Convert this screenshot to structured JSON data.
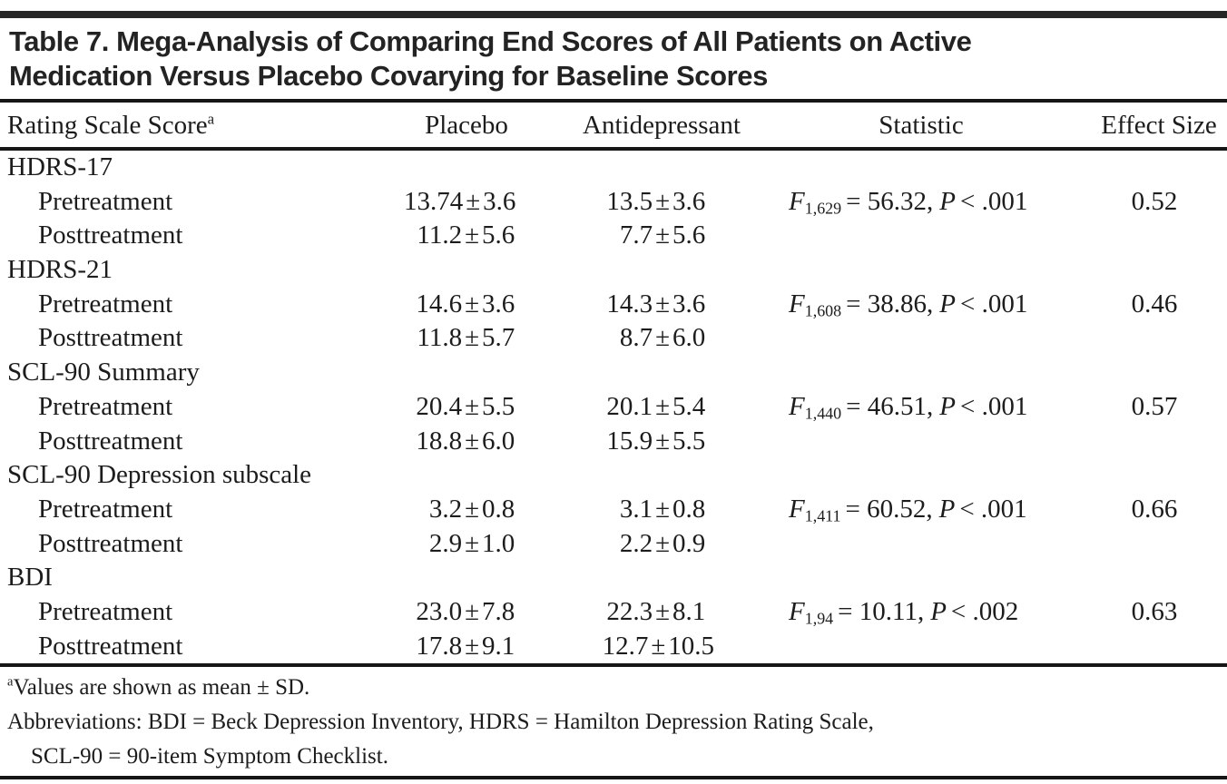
{
  "title": {
    "line1": "Table 7. Mega-Analysis of Comparing End Scores of All Patients on Active",
    "line2": "Medication Versus Placebo Covarying for Baseline Scores"
  },
  "header": {
    "col1": "Rating Scale Score",
    "col1_note": "a",
    "col2": "Placebo",
    "col3": "Antidepressant",
    "col4": "Statistic",
    "col5": "Effect Size"
  },
  "labels": {
    "pre": "Pretreatment",
    "post": "Posttreatment",
    "pm": "±"
  },
  "sections": [
    {
      "name": "HDRS-17",
      "pre": {
        "placebo_mean": "13.74",
        "placebo_sd": "3.6",
        "anti_mean": "13.5",
        "anti_sd": "3.6"
      },
      "post": {
        "placebo_mean": "11.2",
        "placebo_sd": "5.6",
        "anti_mean": "7.7",
        "anti_sd": "5.6"
      },
      "stat": {
        "f": "F",
        "df": "1,629",
        "value": "= 56.32,",
        "p": "P",
        "pval": "< .001"
      },
      "effect_size": "0.52"
    },
    {
      "name": "HDRS-21",
      "pre": {
        "placebo_mean": "14.6",
        "placebo_sd": "3.6",
        "anti_mean": "14.3",
        "anti_sd": "3.6"
      },
      "post": {
        "placebo_mean": "11.8",
        "placebo_sd": "5.7",
        "anti_mean": "8.7",
        "anti_sd": "6.0"
      },
      "stat": {
        "f": "F",
        "df": "1,608",
        "value": "= 38.86,",
        "p": "P",
        "pval": "< .001"
      },
      "effect_size": "0.46"
    },
    {
      "name": "SCL-90 Summary",
      "pre": {
        "placebo_mean": "20.4",
        "placebo_sd": "5.5",
        "anti_mean": "20.1",
        "anti_sd": "5.4"
      },
      "post": {
        "placebo_mean": "18.8",
        "placebo_sd": "6.0",
        "anti_mean": "15.9",
        "anti_sd": "5.5"
      },
      "stat": {
        "f": "F",
        "df": "1,440",
        "value": "= 46.51,",
        "p": "P",
        "pval": "< .001"
      },
      "effect_size": "0.57"
    },
    {
      "name": "SCL-90 Depression subscale",
      "pre": {
        "placebo_mean": "3.2",
        "placebo_sd": "0.8",
        "anti_mean": "3.1",
        "anti_sd": "0.8"
      },
      "post": {
        "placebo_mean": "2.9",
        "placebo_sd": "1.0",
        "anti_mean": "2.2",
        "anti_sd": "0.9"
      },
      "stat": {
        "f": "F",
        "df": "1,411",
        "value": "= 60.52,",
        "p": "P",
        "pval": "< .001"
      },
      "effect_size": "0.66"
    },
    {
      "name": "BDI",
      "pre": {
        "placebo_mean": "23.0",
        "placebo_sd": "7.8",
        "anti_mean": "22.3",
        "anti_sd": "8.1"
      },
      "post": {
        "placebo_mean": "17.8",
        "placebo_sd": "9.1",
        "anti_mean": "12.7",
        "anti_sd": "10.5"
      },
      "stat": {
        "f": "F",
        "df": "1,94",
        "value": "= 10.11,",
        "p": "P",
        "pval": "< .002"
      },
      "effect_size": "0.63"
    }
  ],
  "footnotes": {
    "note_sup": "a",
    "note": "Values are shown as mean ± SD.",
    "abbrev_line1": "Abbreviations: BDI = Beck Depression Inventory, HDRS = Hamilton Depression Rating Scale,",
    "abbrev_line2": "SCL-90 = 90-item Symptom Checklist."
  },
  "colors": {
    "background": "#ffffff",
    "text": "#1c1c1c",
    "rule": "#161616"
  }
}
